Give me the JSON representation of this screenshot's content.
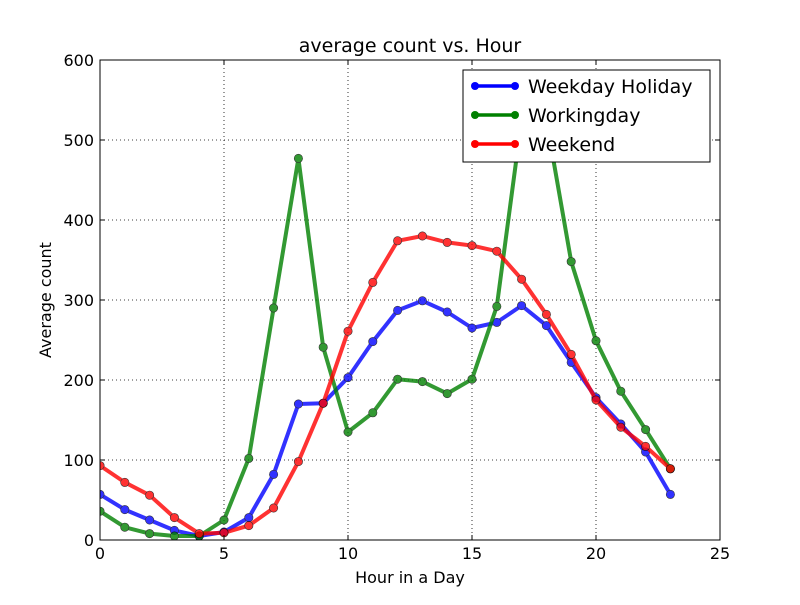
{
  "chart_data": {
    "type": "line",
    "title": "average count vs. Hour",
    "xlabel": "Hour in a Day",
    "ylabel": "Average count",
    "xlim": [
      0,
      25
    ],
    "ylim": [
      0,
      600
    ],
    "xticks": [
      0,
      5,
      10,
      15,
      20,
      25
    ],
    "yticks": [
      0,
      100,
      200,
      300,
      400,
      500,
      600
    ],
    "grid": true,
    "legend_position": "top-right",
    "x": [
      0,
      1,
      2,
      3,
      4,
      5,
      6,
      7,
      8,
      9,
      10,
      11,
      12,
      13,
      14,
      15,
      16,
      17,
      18,
      19,
      20,
      21,
      22,
      23
    ],
    "series": [
      {
        "name": "Weekday Holiday",
        "color": "#0000ff",
        "values": [
          57,
          38,
          25,
          12,
          5,
          10,
          28,
          82,
          170,
          171,
          203,
          248,
          287,
          299,
          285,
          265,
          272,
          293,
          268,
          222,
          178,
          145,
          110,
          57
        ]
      },
      {
        "name": "Workingday",
        "color": "#008000",
        "values": [
          36,
          16,
          8,
          5,
          5,
          25,
          102,
          290,
          477,
          241,
          135,
          159,
          201,
          198,
          183,
          201,
          292,
          525,
          525,
          348,
          249,
          186,
          138,
          89
        ]
      },
      {
        "name": "Weekend",
        "color": "#ff0000",
        "values": [
          93,
          72,
          56,
          28,
          8,
          9,
          18,
          40,
          98,
          171,
          261,
          322,
          374,
          380,
          372,
          368,
          361,
          326,
          282,
          232,
          175,
          141,
          117,
          89
        ]
      }
    ]
  }
}
